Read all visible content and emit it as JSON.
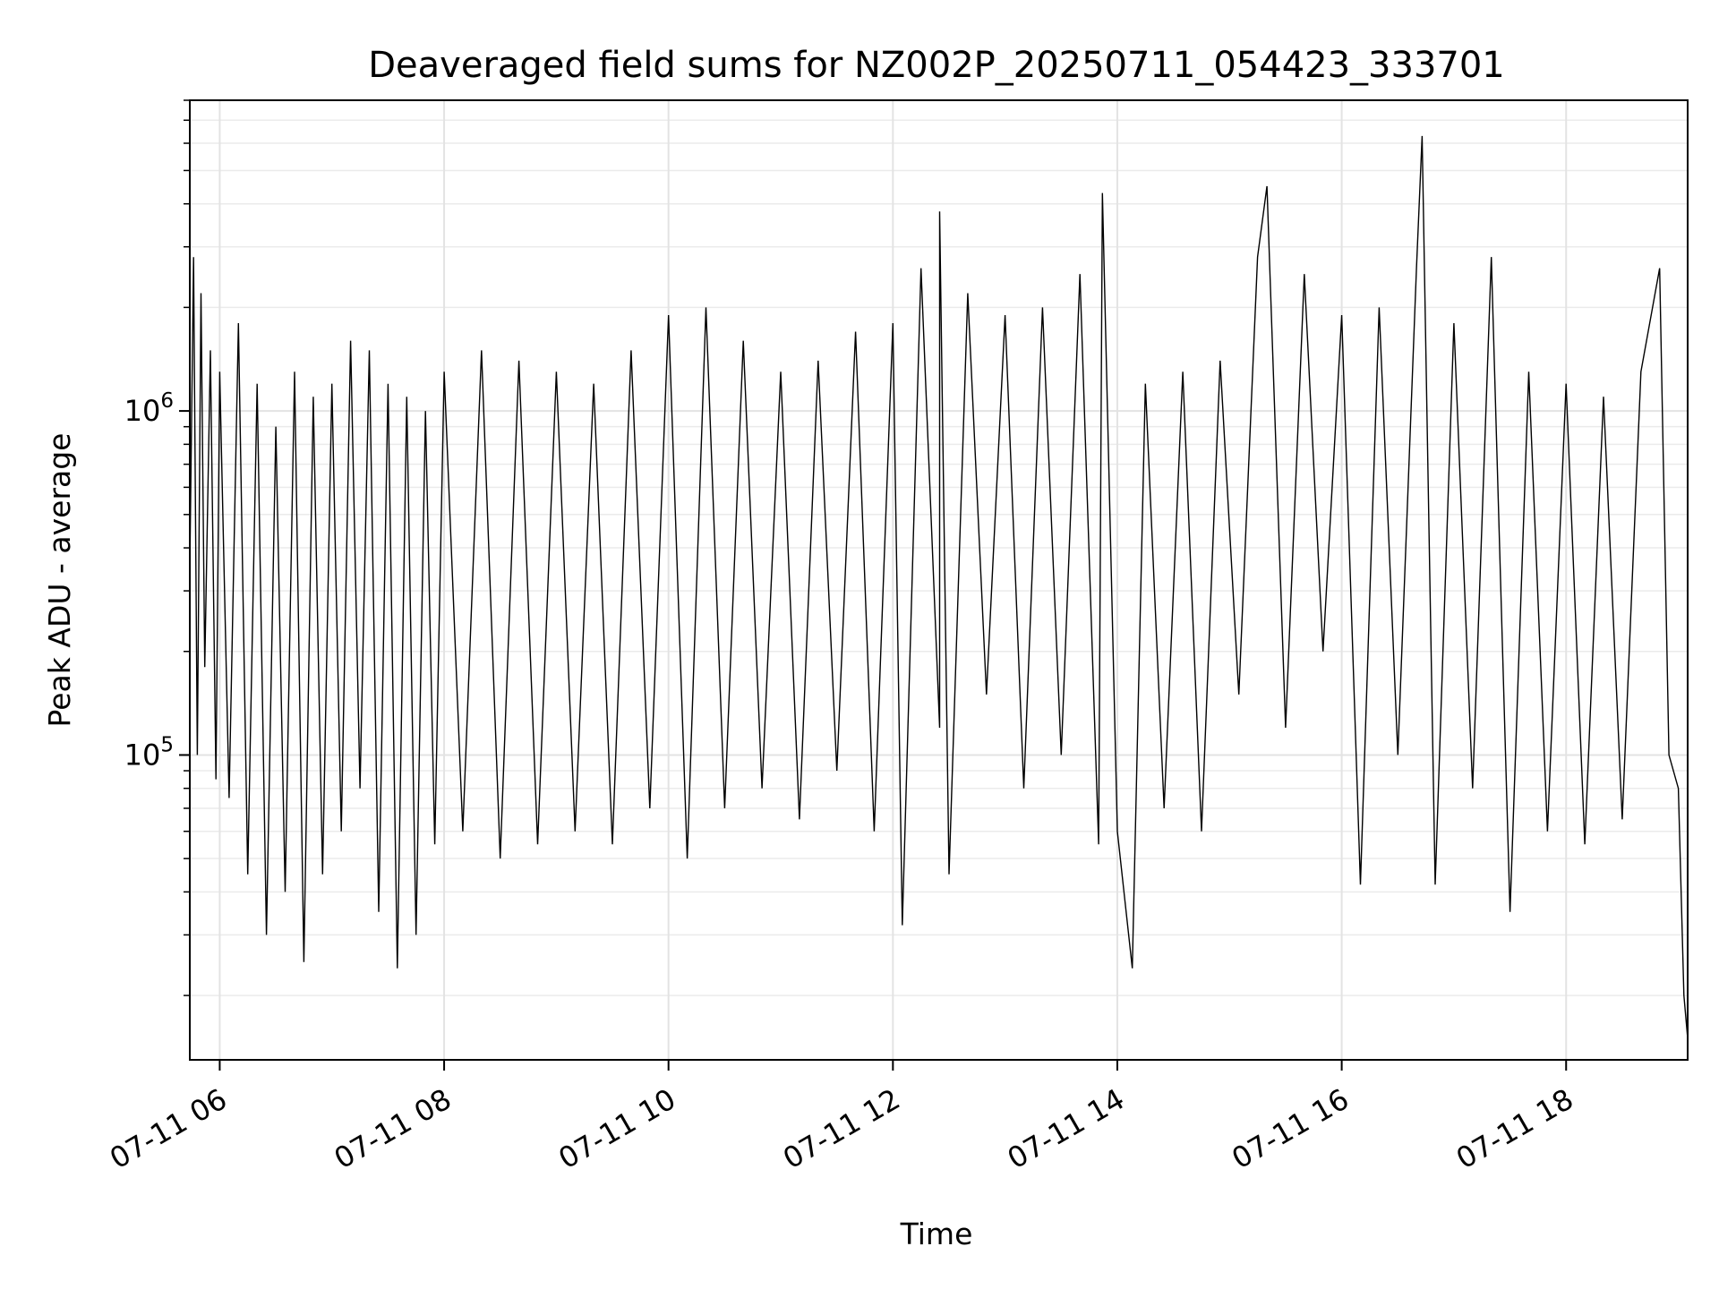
{
  "chart_data": {
    "type": "line",
    "title": "Deaveraged field sums for NZ002P_20250711_054423_333701",
    "xlabel": "Time",
    "ylabel": "Peak ADU - average",
    "y_scale": "log",
    "ylim": [
      13000,
      8000000
    ],
    "xlim": [
      "2025-07-11 05:44",
      "2025-07-11 19:05"
    ],
    "x_ticks": [
      {
        "time": "2025-07-11 06:00",
        "label": "07-11 06"
      },
      {
        "time": "2025-07-11 08:00",
        "label": "07-11 08"
      },
      {
        "time": "2025-07-11 10:00",
        "label": "07-11 10"
      },
      {
        "time": "2025-07-11 12:00",
        "label": "07-11 12"
      },
      {
        "time": "2025-07-11 14:00",
        "label": "07-11 14"
      },
      {
        "time": "2025-07-11 16:00",
        "label": "07-11 16"
      },
      {
        "time": "2025-07-11 18:00",
        "label": "07-11 18"
      }
    ],
    "y_ticks": [
      {
        "value": 100000,
        "base": "10",
        "exp": "5"
      },
      {
        "value": 1000000,
        "base": "10",
        "exp": "6"
      }
    ],
    "grid": true,
    "line_color": "#000000",
    "series": [
      {
        "values": [
          [
            "2025-07-11 05:44",
            350000
          ],
          [
            "2025-07-11 05:46",
            2800000
          ],
          [
            "2025-07-11 05:48",
            100000
          ],
          [
            "2025-07-11 05:50",
            2200000
          ],
          [
            "2025-07-11 05:52",
            180000
          ],
          [
            "2025-07-11 05:55",
            1500000
          ],
          [
            "2025-07-11 05:58",
            85000
          ],
          [
            "2025-07-11 06:00",
            1300000
          ],
          [
            "2025-07-11 06:05",
            75000
          ],
          [
            "2025-07-11 06:10",
            1800000
          ],
          [
            "2025-07-11 06:15",
            45000
          ],
          [
            "2025-07-11 06:20",
            1200000
          ],
          [
            "2025-07-11 06:25",
            30000
          ],
          [
            "2025-07-11 06:30",
            900000
          ],
          [
            "2025-07-11 06:35",
            40000
          ],
          [
            "2025-07-11 06:40",
            1300000
          ],
          [
            "2025-07-11 06:45",
            25000
          ],
          [
            "2025-07-11 06:50",
            1100000
          ],
          [
            "2025-07-11 06:55",
            45000
          ],
          [
            "2025-07-11 07:00",
            1200000
          ],
          [
            "2025-07-11 07:05",
            60000
          ],
          [
            "2025-07-11 07:10",
            1600000
          ],
          [
            "2025-07-11 07:15",
            80000
          ],
          [
            "2025-07-11 07:20",
            1500000
          ],
          [
            "2025-07-11 07:25",
            35000
          ],
          [
            "2025-07-11 07:30",
            1200000
          ],
          [
            "2025-07-11 07:35",
            24000
          ],
          [
            "2025-07-11 07:40",
            1100000
          ],
          [
            "2025-07-11 07:45",
            30000
          ],
          [
            "2025-07-11 07:50",
            1000000
          ],
          [
            "2025-07-11 07:55",
            55000
          ],
          [
            "2025-07-11 08:00",
            1300000
          ],
          [
            "2025-07-11 08:10",
            60000
          ],
          [
            "2025-07-11 08:20",
            1500000
          ],
          [
            "2025-07-11 08:30",
            50000
          ],
          [
            "2025-07-11 08:40",
            1400000
          ],
          [
            "2025-07-11 08:50",
            55000
          ],
          [
            "2025-07-11 09:00",
            1300000
          ],
          [
            "2025-07-11 09:10",
            60000
          ],
          [
            "2025-07-11 09:20",
            1200000
          ],
          [
            "2025-07-11 09:30",
            55000
          ],
          [
            "2025-07-11 09:40",
            1500000
          ],
          [
            "2025-07-11 09:50",
            70000
          ],
          [
            "2025-07-11 10:00",
            1900000
          ],
          [
            "2025-07-11 10:10",
            50000
          ],
          [
            "2025-07-11 10:20",
            2000000
          ],
          [
            "2025-07-11 10:30",
            70000
          ],
          [
            "2025-07-11 10:40",
            1600000
          ],
          [
            "2025-07-11 10:50",
            80000
          ],
          [
            "2025-07-11 11:00",
            1300000
          ],
          [
            "2025-07-11 11:10",
            65000
          ],
          [
            "2025-07-11 11:20",
            1400000
          ],
          [
            "2025-07-11 11:30",
            90000
          ],
          [
            "2025-07-11 11:40",
            1700000
          ],
          [
            "2025-07-11 11:50",
            60000
          ],
          [
            "2025-07-11 12:00",
            1800000
          ],
          [
            "2025-07-11 12:05",
            32000
          ],
          [
            "2025-07-11 12:15",
            2600000
          ],
          [
            "2025-07-11 12:25",
            120000
          ],
          [
            "2025-07-11 12:25",
            3800000
          ],
          [
            "2025-07-11 12:30",
            45000
          ],
          [
            "2025-07-11 12:40",
            2200000
          ],
          [
            "2025-07-11 12:50",
            150000
          ],
          [
            "2025-07-11 13:00",
            1900000
          ],
          [
            "2025-07-11 13:10",
            80000
          ],
          [
            "2025-07-11 13:20",
            2000000
          ],
          [
            "2025-07-11 13:30",
            100000
          ],
          [
            "2025-07-11 13:40",
            2500000
          ],
          [
            "2025-07-11 13:50",
            55000
          ],
          [
            "2025-07-11 13:52",
            4300000
          ],
          [
            "2025-07-11 14:00",
            60000
          ],
          [
            "2025-07-11 14:08",
            24000
          ],
          [
            "2025-07-11 14:15",
            1200000
          ],
          [
            "2025-07-11 14:25",
            70000
          ],
          [
            "2025-07-11 14:35",
            1300000
          ],
          [
            "2025-07-11 14:45",
            60000
          ],
          [
            "2025-07-11 14:55",
            1400000
          ],
          [
            "2025-07-11 15:05",
            150000
          ],
          [
            "2025-07-11 15:15",
            2800000
          ],
          [
            "2025-07-11 15:20",
            4500000
          ],
          [
            "2025-07-11 15:30",
            120000
          ],
          [
            "2025-07-11 15:40",
            2500000
          ],
          [
            "2025-07-11 15:50",
            200000
          ],
          [
            "2025-07-11 16:00",
            1900000
          ],
          [
            "2025-07-11 16:10",
            42000
          ],
          [
            "2025-07-11 16:20",
            2000000
          ],
          [
            "2025-07-11 16:30",
            100000
          ],
          [
            "2025-07-11 16:40",
            2600000
          ],
          [
            "2025-07-11 16:43",
            6300000
          ],
          [
            "2025-07-11 16:50",
            42000
          ],
          [
            "2025-07-11 17:00",
            1800000
          ],
          [
            "2025-07-11 17:10",
            80000
          ],
          [
            "2025-07-11 17:20",
            2800000
          ],
          [
            "2025-07-11 17:30",
            35000
          ],
          [
            "2025-07-11 17:40",
            1300000
          ],
          [
            "2025-07-11 17:50",
            60000
          ],
          [
            "2025-07-11 18:00",
            1200000
          ],
          [
            "2025-07-11 18:10",
            55000
          ],
          [
            "2025-07-11 18:20",
            1100000
          ],
          [
            "2025-07-11 18:30",
            65000
          ],
          [
            "2025-07-11 18:40",
            1300000
          ],
          [
            "2025-07-11 18:50",
            2600000
          ],
          [
            "2025-07-11 18:55",
            100000
          ],
          [
            "2025-07-11 19:00",
            80000
          ],
          [
            "2025-07-11 19:03",
            20000
          ],
          [
            "2025-07-11 19:05",
            15000
          ]
        ]
      }
    ]
  }
}
